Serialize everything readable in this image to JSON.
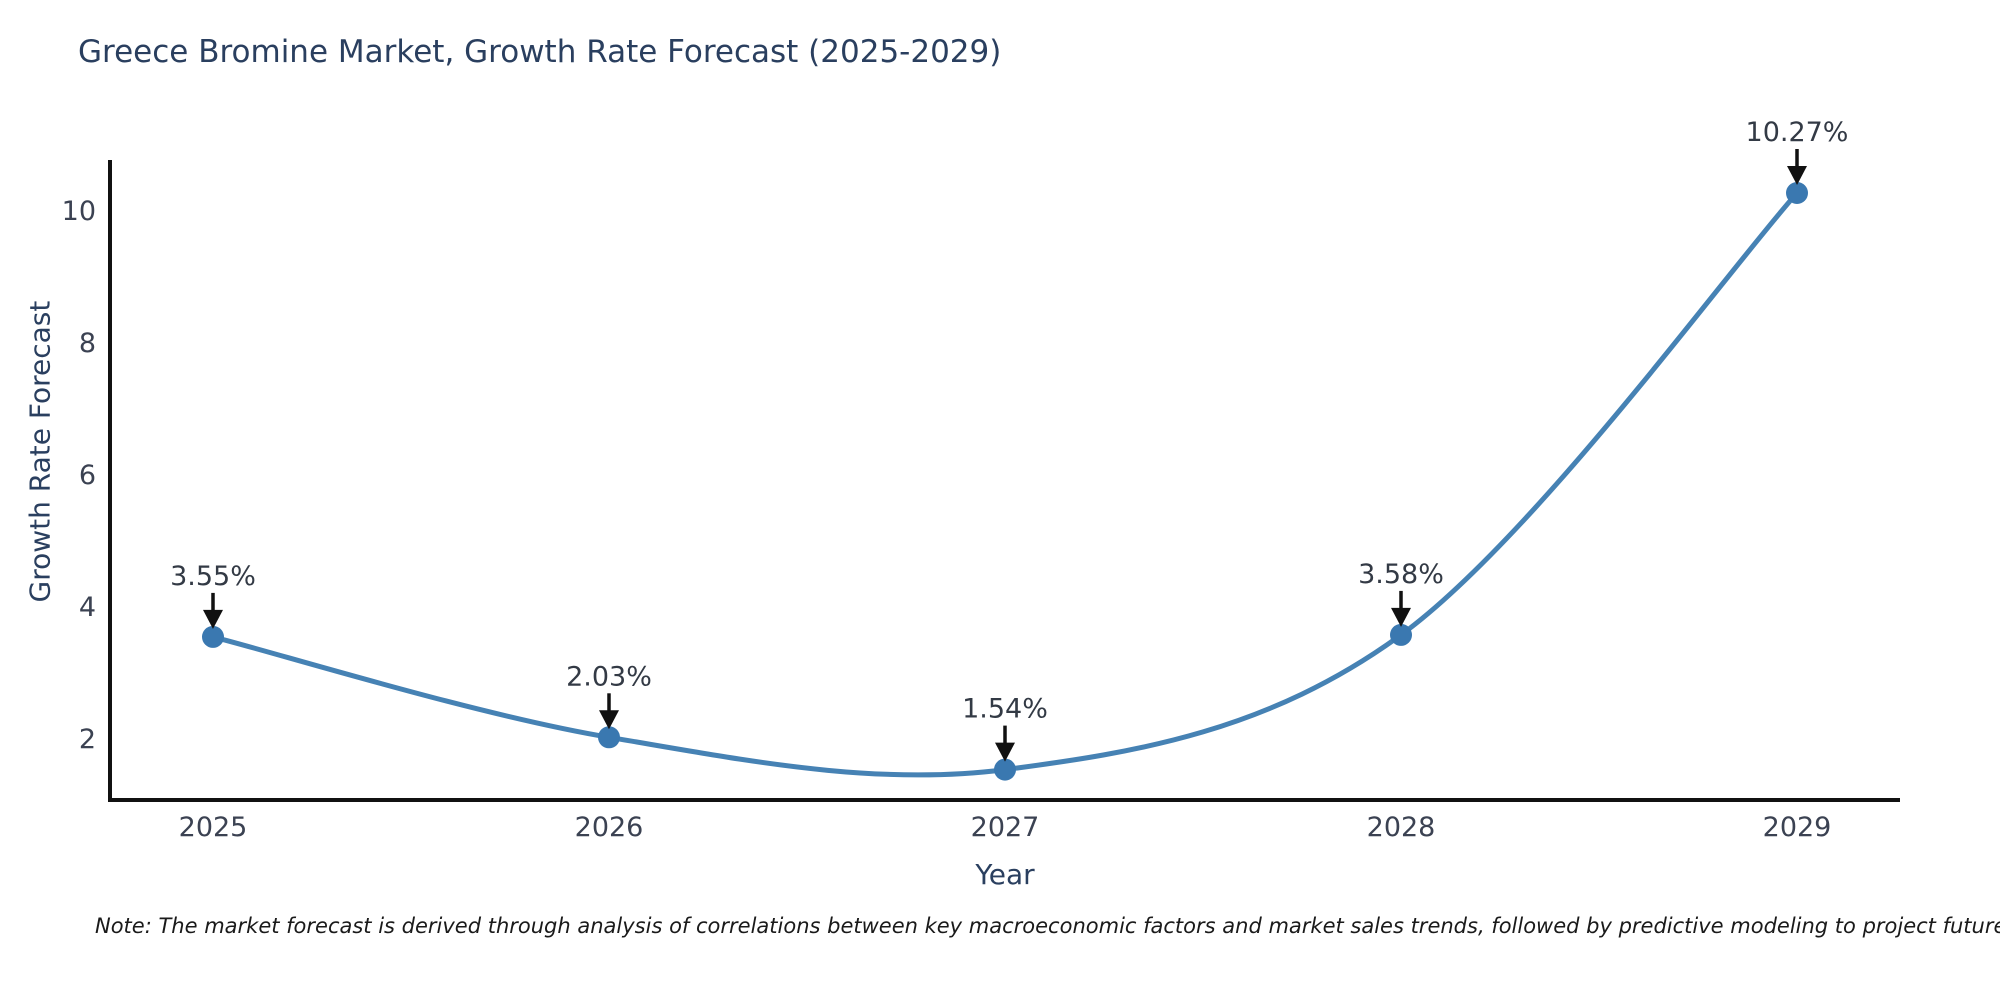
{
  "page": {
    "title": "Greece Bromine Market, Growth Rate Forecast (2025-2029)",
    "note": "Note: The market forecast is derived through analysis of correlations between key macroeconomic factors and market sales trends, followed by predictive modeling to project future sales"
  },
  "chart_data": {
    "type": "line",
    "title": "Greece Bromine Market, Growth Rate Forecast (2025-2029)",
    "categories": [
      "2025",
      "2026",
      "2027",
      "2028",
      "2029"
    ],
    "values": [
      3.55,
      2.03,
      1.54,
      3.58,
      10.27
    ],
    "data_labels": [
      "3.55%",
      "2.03%",
      "1.54%",
      "3.58%",
      "10.27%"
    ],
    "xlabel": "Year",
    "ylabel": "Growth Rate Forecast",
    "yticks": [
      2,
      4,
      6,
      8,
      10
    ],
    "ylim": [
      1.08,
      10.77
    ],
    "grid": false,
    "legend": "none",
    "smooth": true,
    "annotations": "value labels with downward arrows above each point",
    "colors": {
      "line": "#4682b4",
      "marker": "#3a78b0",
      "arrow": "#111111",
      "annotation_text": "#333a45",
      "tick_text": "#3b4252",
      "axis_text": "#2a3f5f",
      "spine": "#111111"
    }
  }
}
